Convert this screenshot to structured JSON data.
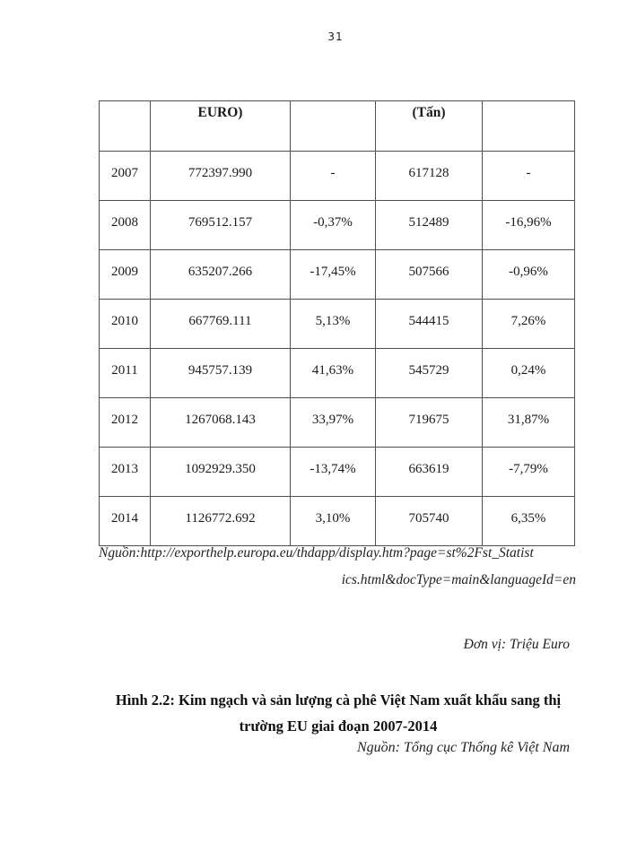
{
  "page": {
    "number": "31"
  },
  "table": {
    "headers": [
      "",
      "EURO)",
      "",
      "(Tấn)",
      ""
    ],
    "rows": [
      [
        "2007",
        "772397.990",
        "-",
        "617128",
        "-"
      ],
      [
        "2008",
        "769512.157",
        "-0,37%",
        "512489",
        "-16,96%"
      ],
      [
        "2009",
        "635207.266",
        "-17,45%",
        "507566",
        "-0,96%"
      ],
      [
        "2010",
        "667769.111",
        "5,13%",
        "544415",
        "7,26%"
      ],
      [
        "2011",
        "945757.139",
        "41,63%",
        "545729",
        "0,24%"
      ],
      [
        "2012",
        "1267068.143",
        "33,97%",
        "719675",
        "31,87%"
      ],
      [
        "2013",
        "1092929.350",
        "-13,74%",
        "663619",
        "-7,79%"
      ],
      [
        "2014",
        "1126772.692",
        "3,10%",
        "705740",
        "6,35%"
      ]
    ]
  },
  "source": {
    "line1": "Nguồn:http://exporthelp.europa.eu/thdapp/display.htm?page=st%2Fst_Statist",
    "line2": "ics.html&docType=main&languageId=en"
  },
  "unit_note": "Đơn vị: Triệu Euro",
  "caption": {
    "line1": "Hình 2.2: Kim ngạch và sản lượng cà phê Việt Nam xuất khẩu sang thị",
    "line2": "trường EU giai đoạn 2007-2014"
  },
  "caption_source": "Nguồn: Tổng cục Thống kê Việt Nam"
}
